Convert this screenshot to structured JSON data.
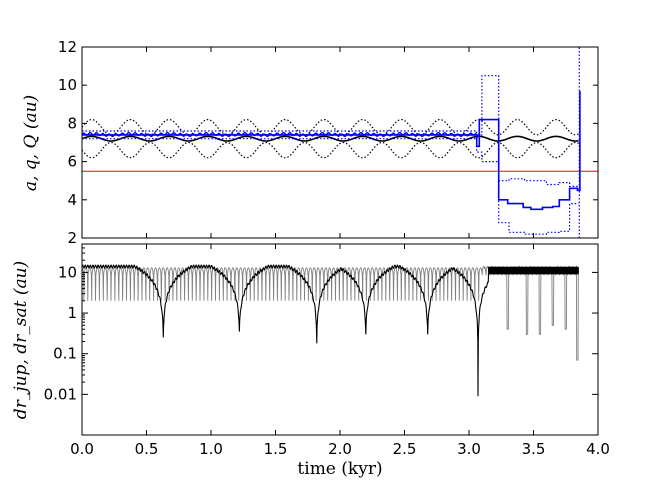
{
  "chart_data": [
    {
      "type": "line",
      "ylabel": "a, q, Q (au)",
      "xlim": [
        0.0,
        4.0
      ],
      "ylim": [
        2,
        12
      ],
      "yticks": [
        2,
        4,
        6,
        8,
        10,
        12
      ],
      "yticks_text": [
        "2",
        "4",
        "6",
        "8",
        "10",
        "12"
      ],
      "colors": {
        "jupiter": "#000000",
        "saturn": "#0000ff",
        "reference": "#ff0000"
      },
      "series": [
        {
          "color": "#ff0000",
          "style": "solid",
          "x": [
            0.0,
            4.0
          ],
          "y": [
            5.5,
            5.5
          ]
        },
        {
          "color": "#000000",
          "style": "solid",
          "x": [
            0.0,
            4.0
          ],
          "y": [
            7.2,
            7.2
          ],
          "amplitude": 0.12,
          "period": 0.3
        },
        {
          "color": "#000000",
          "style": "dotted",
          "x": [
            0.0,
            4.0
          ],
          "y": [
            6.6,
            6.6
          ],
          "amplitude": 0.4,
          "period": 0.3
        },
        {
          "color": "#000000",
          "style": "dotted",
          "x": [
            0.0,
            4.0
          ],
          "y": [
            7.8,
            7.8
          ],
          "amplitude": 0.4,
          "period": 0.3
        },
        {
          "color": "#0000ff",
          "style": "solid",
          "x": [
            0.0,
            3.06,
            3.06,
            3.08,
            3.08,
            3.23,
            3.23,
            3.3,
            3.3,
            3.42,
            3.42,
            3.48,
            3.48,
            3.57,
            3.57,
            3.65,
            3.65,
            3.7,
            3.7,
            3.78,
            3.78,
            3.84,
            3.84,
            3.86,
            3.86
          ],
          "y": [
            7.4,
            7.4,
            6.8,
            6.8,
            8.2,
            8.2,
            4.0,
            4.0,
            3.8,
            3.8,
            3.6,
            3.6,
            3.5,
            3.5,
            3.6,
            3.6,
            3.65,
            3.65,
            4.0,
            4.0,
            4.6,
            4.6,
            4.5,
            4.5,
            9.7
          ]
        },
        {
          "color": "#0000ff",
          "style": "dotted",
          "x": [
            0.0,
            3.06,
            3.06,
            3.1,
            3.1,
            3.23,
            3.23,
            3.31,
            3.31,
            3.43,
            3.43,
            3.6,
            3.6,
            3.7,
            3.7,
            3.78,
            3.78,
            3.85
          ],
          "y": [
            7.2,
            7.2,
            7.4,
            7.4,
            10.5,
            10.5,
            5.0,
            5.0,
            5.1,
            5.1,
            5.0,
            5.0,
            4.8,
            4.8,
            4.9,
            4.9,
            4.7,
            4.7
          ]
        },
        {
          "color": "#0000ff",
          "style": "dotted",
          "x": [
            0.0,
            3.06,
            3.06,
            3.1,
            3.1,
            3.23,
            3.23,
            3.31,
            3.31,
            3.43,
            3.43,
            3.6,
            3.6,
            3.7,
            3.7,
            3.78,
            3.78,
            3.85
          ],
          "y": [
            7.6,
            7.6,
            6.5,
            6.5,
            6.0,
            6.0,
            2.8,
            2.8,
            2.3,
            2.3,
            2.2,
            2.2,
            2.3,
            2.3,
            2.35,
            2.35,
            3.8,
            3.8
          ]
        },
        {
          "color": "#0000ff",
          "style": "dotted",
          "x": [
            3.855,
            3.855
          ],
          "y": [
            2,
            12
          ]
        }
      ]
    },
    {
      "type": "line",
      "ylabel": "dr_jup, dr_sat (au)",
      "xlabel": "time (kyr)",
      "yscale": "log",
      "xlim": [
        0.0,
        4.0
      ],
      "ylim": [
        0.001,
        50
      ],
      "xticks": [
        0.0,
        0.5,
        1.0,
        1.5,
        2.0,
        2.5,
        3.0,
        3.5,
        4.0
      ],
      "xticks_text": [
        "0.0",
        "0.5",
        "1.0",
        "1.5",
        "2.0",
        "2.5",
        "3.0",
        "3.5",
        "4.0"
      ],
      "yticks": [
        0.01,
        0.1,
        1,
        10
      ],
      "yticks_text": [
        "0.01",
        "0.1",
        "1",
        "10"
      ],
      "series": [
        {
          "color": "#808080",
          "style": "solid",
          "x": [
            0.0,
            3.85
          ],
          "y": [
            2.0,
            13.0
          ],
          "period": 0.03,
          "dips": [
            [
              3.3,
              0.4
            ],
            [
              3.45,
              0.3
            ],
            [
              3.55,
              0.3
            ],
            [
              3.65,
              0.5
            ],
            [
              3.75,
              0.4
            ],
            [
              3.84,
              0.07
            ]
          ]
        },
        {
          "color": "#000000",
          "style": "solid",
          "x": [
            0.0,
            3.85
          ],
          "y": [
            14.0,
            14.0
          ],
          "dips": [
            [
              0.63,
              0.25
            ],
            [
              1.22,
              0.35
            ],
            [
              1.82,
              0.18
            ],
            [
              2.2,
              0.3
            ],
            [
              2.68,
              0.3
            ],
            [
              3.07,
              0.009
            ]
          ]
        }
      ]
    }
  ]
}
